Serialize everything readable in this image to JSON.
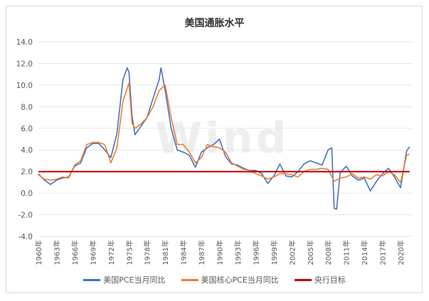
{
  "chart_data": {
    "type": "line",
    "title": "美国通胀水平",
    "watermark": "Wind",
    "ylim": [
      -4.0,
      14.0
    ],
    "yticks": [
      "14.0",
      "12.0",
      "10.0",
      "8.0",
      "6.0",
      "4.0",
      "2.0",
      "0.0",
      "-2.0",
      "-4.0"
    ],
    "xlim": [
      1960,
      2022
    ],
    "xticks": [
      "1960年",
      "1963年",
      "1966年",
      "1969年",
      "1972年",
      "1975年",
      "1978年",
      "1981年",
      "1984年",
      "1987年",
      "1990年",
      "1993年",
      "1996年",
      "1999年",
      "2002年",
      "2005年",
      "2008年",
      "2011年",
      "2014年",
      "2017年",
      "2020年"
    ],
    "grid": true,
    "legend_position": "bottom",
    "series": [
      {
        "name": "美国PCE当月同比",
        "color": "#4472c4",
        "points": [
          [
            1960,
            1.8
          ],
          [
            1961,
            1.2
          ],
          [
            1962,
            0.8
          ],
          [
            1963,
            1.2
          ],
          [
            1964,
            1.4
          ],
          [
            1965,
            1.5
          ],
          [
            1966,
            2.5
          ],
          [
            1967,
            2.8
          ],
          [
            1968,
            4.2
          ],
          [
            1969,
            4.6
          ],
          [
            1970,
            4.6
          ],
          [
            1971,
            4.0
          ],
          [
            1972,
            3.3
          ],
          [
            1973,
            5.5
          ],
          [
            1974,
            10.5
          ],
          [
            1974.7,
            11.6
          ],
          [
            1975,
            11.2
          ],
          [
            1975.5,
            7.2
          ],
          [
            1976,
            5.4
          ],
          [
            1977,
            6.2
          ],
          [
            1978,
            7.0
          ],
          [
            1979,
            8.8
          ],
          [
            1980,
            10.5
          ],
          [
            1980.3,
            11.6
          ],
          [
            1981,
            9.5
          ],
          [
            1982,
            6.0
          ],
          [
            1983,
            4.0
          ],
          [
            1984,
            3.8
          ],
          [
            1985,
            3.5
          ],
          [
            1986,
            2.4
          ],
          [
            1987,
            3.8
          ],
          [
            1988,
            4.2
          ],
          [
            1989,
            4.5
          ],
          [
            1990,
            5.0
          ],
          [
            1991,
            3.4
          ],
          [
            1992,
            2.7
          ],
          [
            1993,
            2.6
          ],
          [
            1994,
            2.3
          ],
          [
            1995,
            2.1
          ],
          [
            1996,
            2.1
          ],
          [
            1997,
            1.8
          ],
          [
            1998,
            0.9
          ],
          [
            1999,
            1.6
          ],
          [
            2000,
            2.7
          ],
          [
            2001,
            1.6
          ],
          [
            2002,
            1.5
          ],
          [
            2003,
            2.0
          ],
          [
            2004,
            2.7
          ],
          [
            2005,
            3.0
          ],
          [
            2006,
            2.8
          ],
          [
            2007,
            2.6
          ],
          [
            2008,
            4.0
          ],
          [
            2008.6,
            4.2
          ],
          [
            2009,
            -1.4
          ],
          [
            2009.4,
            -1.5
          ],
          [
            2010,
            1.9
          ],
          [
            2011,
            2.5
          ],
          [
            2012,
            1.6
          ],
          [
            2013,
            1.2
          ],
          [
            2014,
            1.4
          ],
          [
            2015,
            0.2
          ],
          [
            2016,
            1.1
          ],
          [
            2017,
            1.8
          ],
          [
            2018,
            2.3
          ],
          [
            2019,
            1.5
          ],
          [
            2020,
            0.5
          ],
          [
            2021,
            3.9
          ],
          [
            2021.5,
            4.3
          ]
        ]
      },
      {
        "name": "美国核心PCE当月同比",
        "color": "#ed7d31",
        "points": [
          [
            1960,
            1.7
          ],
          [
            1961,
            1.3
          ],
          [
            1962,
            1.2
          ],
          [
            1963,
            1.3
          ],
          [
            1964,
            1.5
          ],
          [
            1965,
            1.4
          ],
          [
            1966,
            2.6
          ],
          [
            1967,
            3.0
          ],
          [
            1968,
            4.5
          ],
          [
            1969,
            4.7
          ],
          [
            1970,
            4.7
          ],
          [
            1971,
            4.5
          ],
          [
            1972,
            2.8
          ],
          [
            1973,
            4.2
          ],
          [
            1974,
            8.5
          ],
          [
            1975,
            10.2
          ],
          [
            1975.5,
            6.5
          ],
          [
            1976,
            6.0
          ],
          [
            1977,
            6.4
          ],
          [
            1978,
            7.0
          ],
          [
            1979,
            8.0
          ],
          [
            1980,
            9.5
          ],
          [
            1981,
            10.0
          ],
          [
            1982,
            7.0
          ],
          [
            1983,
            4.5
          ],
          [
            1984,
            4.5
          ],
          [
            1985,
            3.8
          ],
          [
            1986,
            2.8
          ],
          [
            1987,
            3.3
          ],
          [
            1988,
            4.5
          ],
          [
            1989,
            4.3
          ],
          [
            1990,
            4.2
          ],
          [
            1991,
            3.8
          ],
          [
            1992,
            2.8
          ],
          [
            1993,
            2.5
          ],
          [
            1994,
            2.2
          ],
          [
            1995,
            2.1
          ],
          [
            1996,
            1.8
          ],
          [
            1997,
            1.6
          ],
          [
            1998,
            1.3
          ],
          [
            1999,
            1.5
          ],
          [
            2000,
            1.8
          ],
          [
            2001,
            1.8
          ],
          [
            2002,
            1.7
          ],
          [
            2003,
            1.5
          ],
          [
            2004,
            2.0
          ],
          [
            2005,
            2.2
          ],
          [
            2006,
            2.2
          ],
          [
            2007,
            2.3
          ],
          [
            2008,
            2.2
          ],
          [
            2009,
            1.1
          ],
          [
            2010,
            1.4
          ],
          [
            2011,
            1.5
          ],
          [
            2012,
            1.8
          ],
          [
            2013,
            1.4
          ],
          [
            2014,
            1.5
          ],
          [
            2015,
            1.3
          ],
          [
            2016,
            1.7
          ],
          [
            2017,
            1.6
          ],
          [
            2018,
            2.0
          ],
          [
            2019,
            1.7
          ],
          [
            2020,
            1.0
          ],
          [
            2021,
            3.5
          ],
          [
            2021.5,
            3.6
          ]
        ]
      },
      {
        "name": "央行目标",
        "color": "#c00000",
        "points": [
          [
            1960,
            2.0
          ],
          [
            2021.5,
            2.0
          ]
        ]
      }
    ]
  }
}
